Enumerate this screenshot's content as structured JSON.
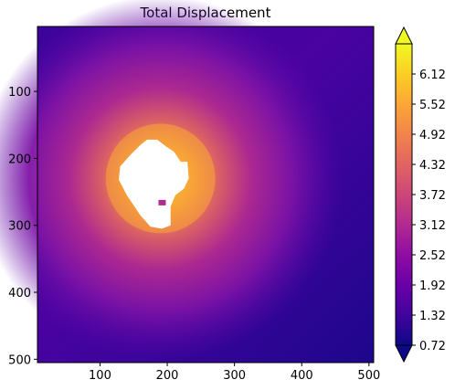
{
  "chart_data": {
    "type": "heatmap",
    "title": "Total Displacement",
    "colormap": "plasma",
    "x_ticks": [
      100,
      200,
      300,
      400,
      500
    ],
    "y_ticks": [
      100,
      200,
      300,
      400,
      500
    ],
    "xlim": [
      7,
      507
    ],
    "ylim": [
      505,
      3
    ],
    "y_axis_inverted": true,
    "colorbar": {
      "ticks": [
        "0.72",
        "1.32",
        "1.92",
        "2.52",
        "3.12",
        "3.72",
        "4.32",
        "4.92",
        "5.52",
        "6.12"
      ],
      "vmin": 0.72,
      "vmax": 6.72,
      "extend": "both"
    },
    "hotspot": {
      "x": 190,
      "y": 230,
      "peak": 6.72
    },
    "masked_region": "white polygon around the hotspot centered near (190, 230)",
    "background_level": 0.9
  }
}
